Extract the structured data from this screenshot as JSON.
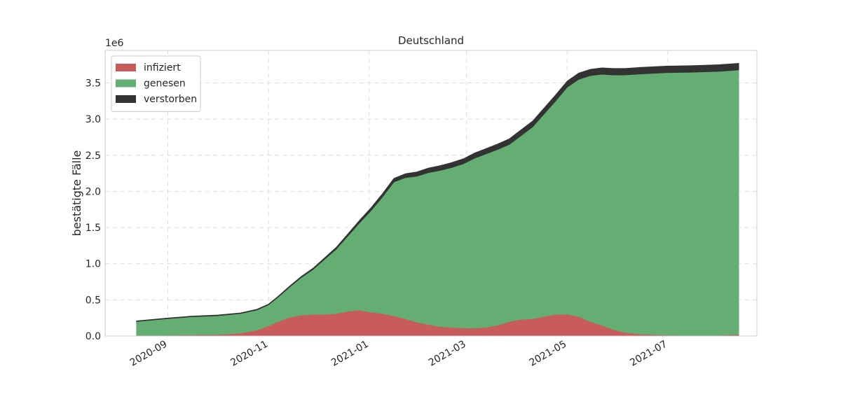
{
  "chart_data": {
    "type": "area",
    "title": "Deutschland",
    "xlabel": "",
    "ylabel": "bestätigte Fälle",
    "y_offset_label": "1e6",
    "x_ticks": [
      "2020-09",
      "2020-11",
      "2021-01",
      "2021-03",
      "2021-05",
      "2021-07"
    ],
    "y_ticks": [
      "0.0",
      "0.5",
      "1.0",
      "1.5",
      "2.0",
      "2.5",
      "3.0",
      "3.5"
    ],
    "ylim": [
      0,
      3.95
    ],
    "xlim": [
      "2020-07-25",
      "2021-08-24"
    ],
    "grid": true,
    "legend_position": "top-left",
    "stacked": true,
    "x": [
      "2020-08-13",
      "2020-09-01",
      "2020-09-15",
      "2020-10-01",
      "2020-10-15",
      "2020-10-25",
      "2020-11-01",
      "2020-11-07",
      "2020-11-14",
      "2020-11-21",
      "2020-11-28",
      "2020-12-05",
      "2020-12-12",
      "2020-12-19",
      "2020-12-26",
      "2021-01-02",
      "2021-01-09",
      "2021-01-16",
      "2021-01-23",
      "2021-01-30",
      "2021-02-06",
      "2021-02-13",
      "2021-02-20",
      "2021-02-27",
      "2021-03-06",
      "2021-03-13",
      "2021-03-20",
      "2021-03-27",
      "2021-04-03",
      "2021-04-10",
      "2021-04-17",
      "2021-04-24",
      "2021-05-01",
      "2021-05-08",
      "2021-05-15",
      "2021-05-22",
      "2021-05-29",
      "2021-06-05",
      "2021-06-15",
      "2021-06-30",
      "2021-07-15",
      "2021-08-01",
      "2021-08-13"
    ],
    "series": [
      {
        "name": "infiziert",
        "color": "#c85c5c",
        "values": [
          0.01,
          0.01,
          0.015,
          0.02,
          0.04,
          0.08,
          0.14,
          0.2,
          0.26,
          0.29,
          0.3,
          0.3,
          0.31,
          0.34,
          0.36,
          0.33,
          0.31,
          0.28,
          0.24,
          0.19,
          0.16,
          0.13,
          0.12,
          0.11,
          0.11,
          0.12,
          0.15,
          0.2,
          0.23,
          0.24,
          0.27,
          0.3,
          0.3,
          0.27,
          0.2,
          0.15,
          0.09,
          0.05,
          0.025,
          0.012,
          0.008,
          0.01,
          0.02
        ]
      },
      {
        "name": "genesen",
        "color": "#64ae73",
        "values": [
          0.19,
          0.23,
          0.25,
          0.26,
          0.27,
          0.28,
          0.29,
          0.34,
          0.42,
          0.52,
          0.62,
          0.76,
          0.89,
          1.04,
          1.2,
          1.4,
          1.61,
          1.85,
          1.95,
          2.02,
          2.1,
          2.16,
          2.21,
          2.27,
          2.35,
          2.4,
          2.43,
          2.45,
          2.54,
          2.65,
          2.8,
          2.95,
          3.14,
          3.28,
          3.4,
          3.47,
          3.52,
          3.56,
          3.6,
          3.63,
          3.64,
          3.65,
          3.66
        ]
      },
      {
        "name": "verstorben",
        "color": "#333333",
        "values": [
          0.009,
          0.009,
          0.0095,
          0.0097,
          0.0098,
          0.01,
          0.011,
          0.012,
          0.014,
          0.016,
          0.018,
          0.021,
          0.025,
          0.03,
          0.036,
          0.04,
          0.045,
          0.05,
          0.055,
          0.06,
          0.063,
          0.066,
          0.068,
          0.07,
          0.072,
          0.074,
          0.076,
          0.078,
          0.08,
          0.081,
          0.082,
          0.084,
          0.085,
          0.087,
          0.088,
          0.089,
          0.09,
          0.09,
          0.091,
          0.091,
          0.091,
          0.092,
          0.092
        ]
      }
    ]
  }
}
